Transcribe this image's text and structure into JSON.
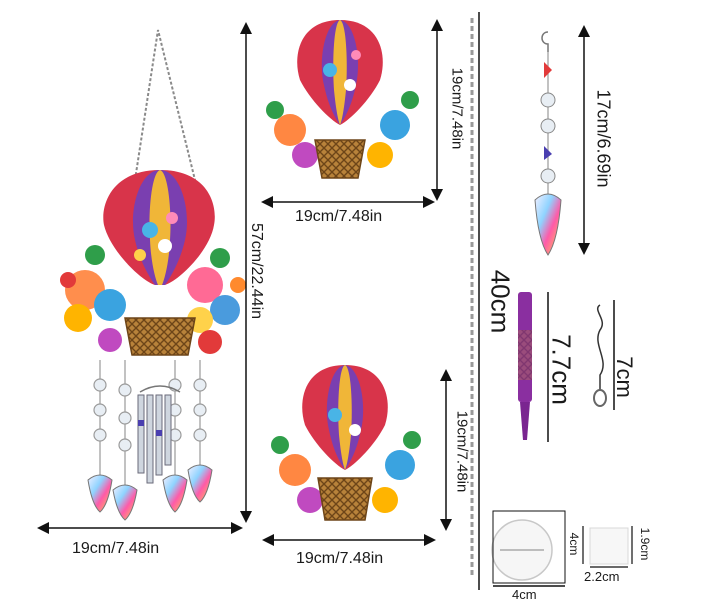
{
  "labels": {
    "main_width": "19cm/7.48in",
    "main_height": "57cm/22.44in",
    "top_height": "19cm/7.48in",
    "top_width": "19cm/7.48in",
    "bottom_height": "19cm/7.48in",
    "bottom_width": "19cm/7.48in",
    "chain_length": "40cm",
    "pendant_length": "17cm/6.69in",
    "pen_length": "7.7cm",
    "hook_length": "7cm",
    "disc_size": "4cm",
    "square_height": "4cm",
    "clip_height": "1.9cm",
    "clip_width": "2.2cm"
  }
}
